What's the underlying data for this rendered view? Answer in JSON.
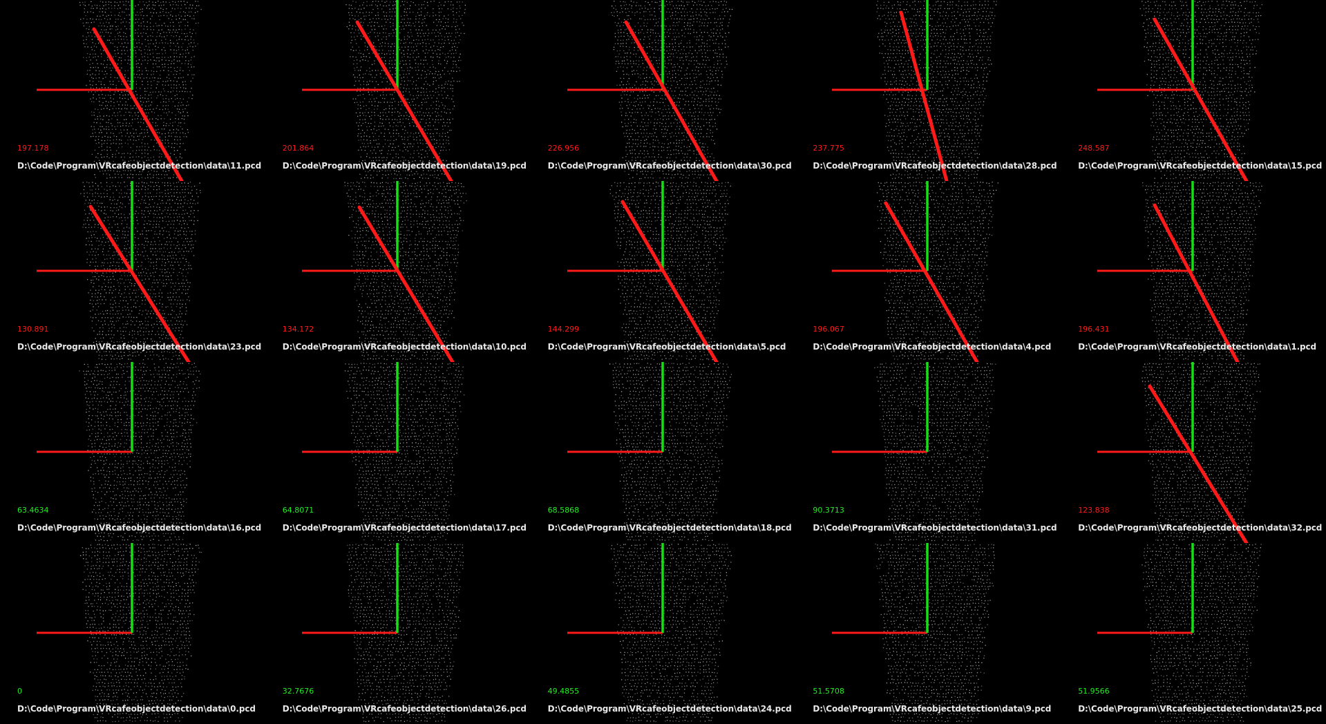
{
  "colors": {
    "background": "#000000",
    "point": "#bdbdbd",
    "axis_x": "#ff1a1a",
    "axis_y": "#14e014",
    "score_high": "#ff1a1a",
    "score_low": "#22ee22",
    "path_text": "#e8e8e8"
  },
  "views": [
    {
      "score": "197.178",
      "path": "D:\\Code\\Program\\VRcafeobjectdetection\\data\\11.pcd",
      "status": "high",
      "show_normal": true,
      "normal": [
        [
          -55,
          -88
        ],
        [
          72,
          132
        ]
      ]
    },
    {
      "score": "201.864",
      "path": "D:\\Code\\Program\\VRcafeobjectdetection\\data\\19.pcd",
      "status": "high",
      "show_normal": true,
      "normal": [
        [
          -58,
          -98
        ],
        [
          78,
          132
        ]
      ]
    },
    {
      "score": "226.956",
      "path": "D:\\Code\\Program\\VRcafeobjectdetection\\data\\30.pcd",
      "status": "high",
      "show_normal": true,
      "normal": [
        [
          -53,
          -98
        ],
        [
          78,
          132
        ]
      ]
    },
    {
      "score": "237.775",
      "path": "D:\\Code\\Program\\VRcafeobjectdetection\\data\\28.pcd",
      "status": "high",
      "show_normal": true,
      "normal": [
        [
          -38,
          -112
        ],
        [
          28,
          132
        ]
      ]
    },
    {
      "score": "248.587",
      "path": "D:\\Code\\Program\\VRcafeobjectdetection\\data\\15.pcd",
      "status": "high",
      "show_normal": true,
      "normal": [
        [
          -55,
          -102
        ],
        [
          78,
          132
        ]
      ]
    },
    {
      "score": "130.891",
      "path": "D:\\Code\\Program\\VRcafeobjectdetection\\data\\23.pcd",
      "status": "high",
      "show_normal": true,
      "normal": [
        [
          -60,
          -93
        ],
        [
          82,
          132
        ]
      ]
    },
    {
      "score": "134.172",
      "path": "D:\\Code\\Program\\VRcafeobjectdetection\\data\\10.pcd",
      "status": "high",
      "show_normal": true,
      "normal": [
        [
          -55,
          -92
        ],
        [
          80,
          132
        ]
      ]
    },
    {
      "score": "144.299",
      "path": "D:\\Code\\Program\\VRcafeobjectdetection\\data\\5.pcd",
      "status": "high",
      "show_normal": true,
      "normal": [
        [
          -58,
          -100
        ],
        [
          78,
          132
        ]
      ]
    },
    {
      "score": "196.067",
      "path": "D:\\Code\\Program\\VRcafeobjectdetection\\data\\4.pcd",
      "status": "high",
      "show_normal": true,
      "normal": [
        [
          -60,
          -98
        ],
        [
          72,
          132
        ]
      ]
    },
    {
      "score": "196.431",
      "path": "D:\\Code\\Program\\VRcafeobjectdetection\\data\\1.pcd",
      "status": "high",
      "show_normal": true,
      "normal": [
        [
          -55,
          -95
        ],
        [
          65,
          132
        ]
      ]
    },
    {
      "score": "63.4634",
      "path": "D:\\Code\\Program\\VRcafeobjectdetection\\data\\16.pcd",
      "status": "low",
      "show_normal": false
    },
    {
      "score": "64.8071",
      "path": "D:\\Code\\Program\\VRcafeobjectdetection\\data\\17.pcd",
      "status": "low",
      "show_normal": false
    },
    {
      "score": "68.5868",
      "path": "D:\\Code\\Program\\VRcafeobjectdetection\\data\\18.pcd",
      "status": "low",
      "show_normal": false
    },
    {
      "score": "90.3713",
      "path": "D:\\Code\\Program\\VRcafeobjectdetection\\data\\31.pcd",
      "status": "low",
      "show_normal": false
    },
    {
      "score": "123.838",
      "path": "D:\\Code\\Program\\VRcafeobjectdetection\\data\\32.pcd",
      "status": "high",
      "show_normal": true,
      "normal": [
        [
          -62,
          -95
        ],
        [
          78,
          132
        ]
      ]
    },
    {
      "score": "0",
      "path": "D:\\Code\\Program\\VRcafeobjectdetection\\data\\0.pcd",
      "status": "low",
      "show_normal": false
    },
    {
      "score": "32.7676",
      "path": "D:\\Code\\Program\\VRcafeobjectdetection\\data\\26.pcd",
      "status": "low",
      "show_normal": false
    },
    {
      "score": "49.4855",
      "path": "D:\\Code\\Program\\VRcafeobjectdetection\\data\\24.pcd",
      "status": "low",
      "show_normal": false
    },
    {
      "score": "51.5708",
      "path": "D:\\Code\\Program\\VRcafeobjectdetection\\data\\9.pcd",
      "status": "low",
      "show_normal": false
    },
    {
      "score": "51.9566",
      "path": "D:\\Code\\Program\\VRcafeobjectdetection\\data\\25.pcd",
      "status": "low",
      "show_normal": false
    }
  ]
}
